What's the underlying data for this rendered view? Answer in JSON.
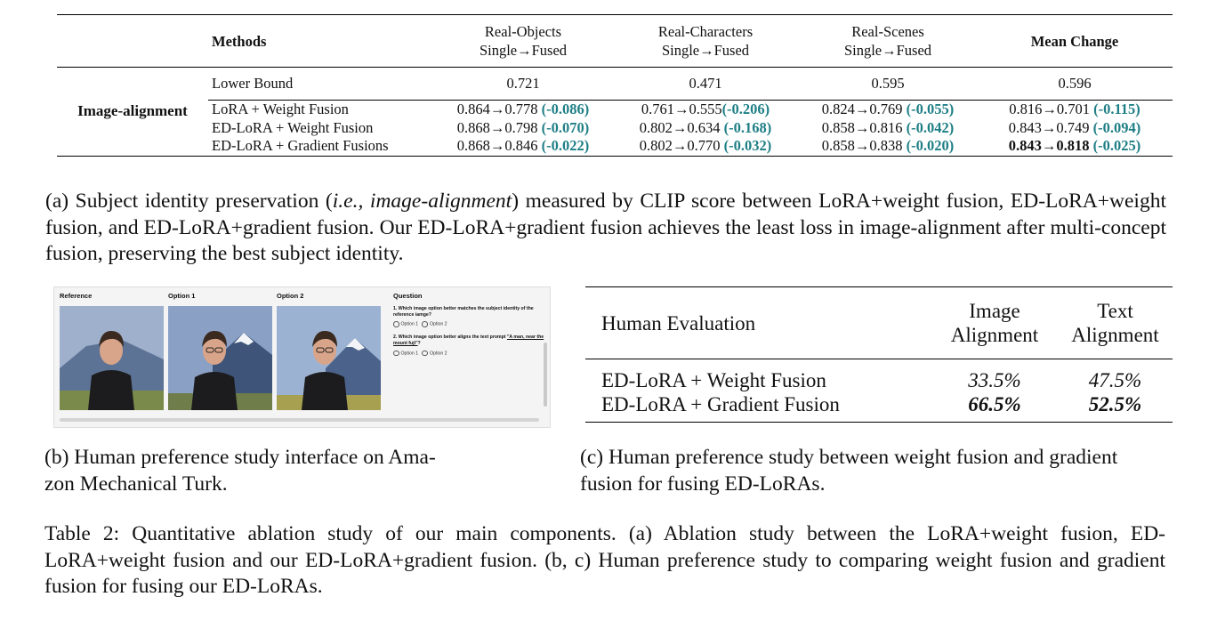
{
  "table_a": {
    "headers": {
      "methods": "Methods",
      "objects_line1": "Real-Objects",
      "objects_line2": "Single→Fused",
      "characters_line1": "Real-Characters",
      "characters_line2": "Single→Fused",
      "scenes_line1": "Real-Scenes",
      "scenes_line2": "Single→Fused",
      "mean": "Mean Change"
    },
    "row_group_label": "Image-alignment",
    "lower_bound": {
      "method": "Lower Bound",
      "objects": "0.721",
      "characters": "0.471",
      "scenes": "0.595",
      "mean": "0.596"
    },
    "rows": [
      {
        "method": "LoRA + Weight Fusion",
        "objects": "0.864→0.778 ",
        "objects_delta": "(-0.086)",
        "characters": "0.761→0.555",
        "characters_delta": "(-0.206)",
        "scenes": "0.824→0.769 ",
        "scenes_delta": "(-0.055)",
        "mean": "0.816→0.701 ",
        "mean_delta": "(-0.115)"
      },
      {
        "method": "ED-LoRA + Weight Fusion",
        "objects": "0.868→0.798 ",
        "objects_delta": "(-0.070)",
        "characters": "0.802→0.634 ",
        "characters_delta": "(-0.168)",
        "scenes": "0.858→0.816 ",
        "scenes_delta": "(-0.042)",
        "mean": "0.843→0.749 ",
        "mean_delta": "(-0.094)"
      },
      {
        "method": "ED-LoRA + Gradient Fusions",
        "objects": "0.868→0.846 ",
        "objects_delta": "(-0.022)",
        "characters": "0.802→0.770 ",
        "characters_delta": "(-0.032)",
        "scenes": "0.858→0.838 ",
        "scenes_delta": "(-0.020)",
        "mean": "0.843→0.818 ",
        "mean_delta": "(-0.025)"
      }
    ]
  },
  "caption_a": {
    "prefix": "(a) Subject identity preservation (",
    "italic": "i.e., image-alignment",
    "suffix": ") measured by CLIP score between LoRA+weight fusion, ED-LoRA+weight fusion, and ED-LoRA+gradient fusion. Our ED-LoRA+gradient fusion achieves the least loss in image-alignment after multi-concept fusion, preserving the best subject identity."
  },
  "interface": {
    "columns": [
      "Reference",
      "Option 1",
      "Option 2",
      "Question"
    ],
    "question1": "1. Which image option better matches the subject identity of the reference iamge?",
    "question2_prefix": "2. Which image option better aligns the text prompt ",
    "question2_prompt": "\"A man, near the mount fuji\"",
    "question2_suffix": "?",
    "option1": "Option 1",
    "option2": "Option 2",
    "colors": {
      "sky": "#8fa3c6",
      "mountain": "#3e5478",
      "snow": "#f2f4f8",
      "jacket": "#1c1c1e",
      "skin": "#d9a58a",
      "hair": "#3a2a1f",
      "ground": "#7a8a4a"
    }
  },
  "table_c": {
    "header_label": "Human Evaluation",
    "col1_line1": "Image",
    "col1_line2": "Alignment",
    "col2_line1": "Text",
    "col2_line2": "Alignment",
    "rows": [
      {
        "method": "ED-LoRA + Weight Fusion",
        "image": "33.5%",
        "text": "47.5%"
      },
      {
        "method": "ED-LoRA + Gradient Fusion",
        "image": "66.5%",
        "text": "52.5%"
      }
    ]
  },
  "caption_b": "(b) Human preference study interface on Amazon Mechanical Turk.",
  "caption_b_line1": "(b) Human preference study interface on Ama-",
  "caption_b_line2": "zon Mechanical Turk.",
  "caption_c": "(c) Human preference study between weight fusion and gradient fusion for fusing ED-LoRAs.",
  "table_caption": "Table 2: Quantitative ablation study of our main components. (a) Ablation study between the LoRA+weight fusion, ED-LoRA+weight fusion and our ED-LoRA+gradient fusion. (b, c) Human preference study to comparing weight fusion and gradient fusion for fusing our ED-LoRAs.",
  "accent_color": "#1f7f86"
}
